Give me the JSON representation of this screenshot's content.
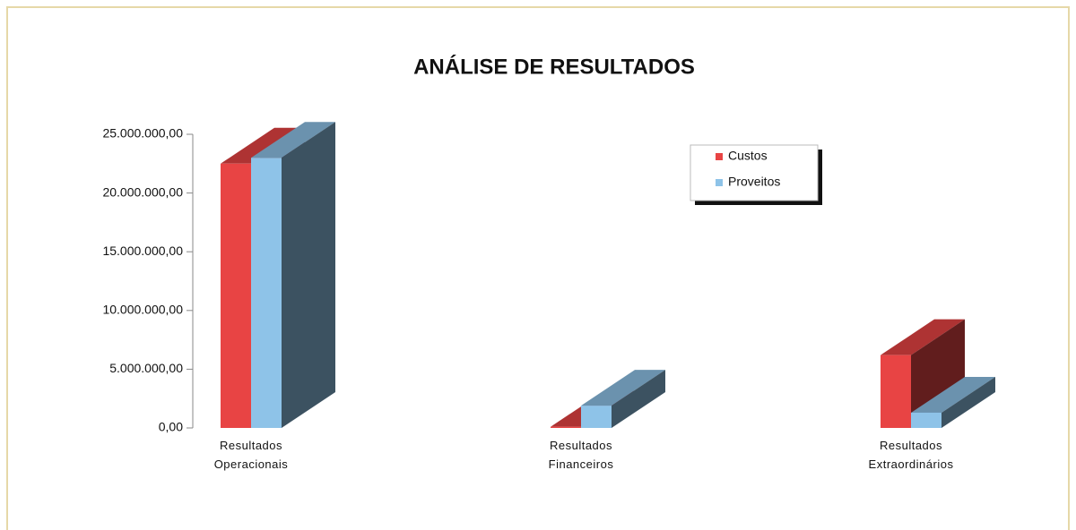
{
  "chart_data": {
    "type": "bar3d",
    "title": "ANÁLISE DE RESULTADOS",
    "categories": [
      "Resultados Operacionais",
      "Resultados Financeiros",
      "Resultados Extraordinários"
    ],
    "series": [
      {
        "name": "Custos",
        "color": "#e84444",
        "values": [
          22500000,
          100000,
          6200000
        ]
      },
      {
        "name": "Proveitos",
        "color": "#8ec3e8",
        "values": [
          23000000,
          1900000,
          1300000
        ]
      }
    ],
    "ylim": [
      0,
      25000000
    ],
    "yticks": [
      {
        "value": 0,
        "label": "0,00"
      },
      {
        "value": 5000000,
        "label": "5.000.000,00"
      },
      {
        "value": 10000000,
        "label": "10.000.000,00"
      },
      {
        "value": 15000000,
        "label": "15.000.000,00"
      },
      {
        "value": 20000000,
        "label": "20.000.000,00"
      },
      {
        "value": 25000000,
        "label": "25.000.000,00"
      }
    ],
    "legend": "upper right"
  }
}
